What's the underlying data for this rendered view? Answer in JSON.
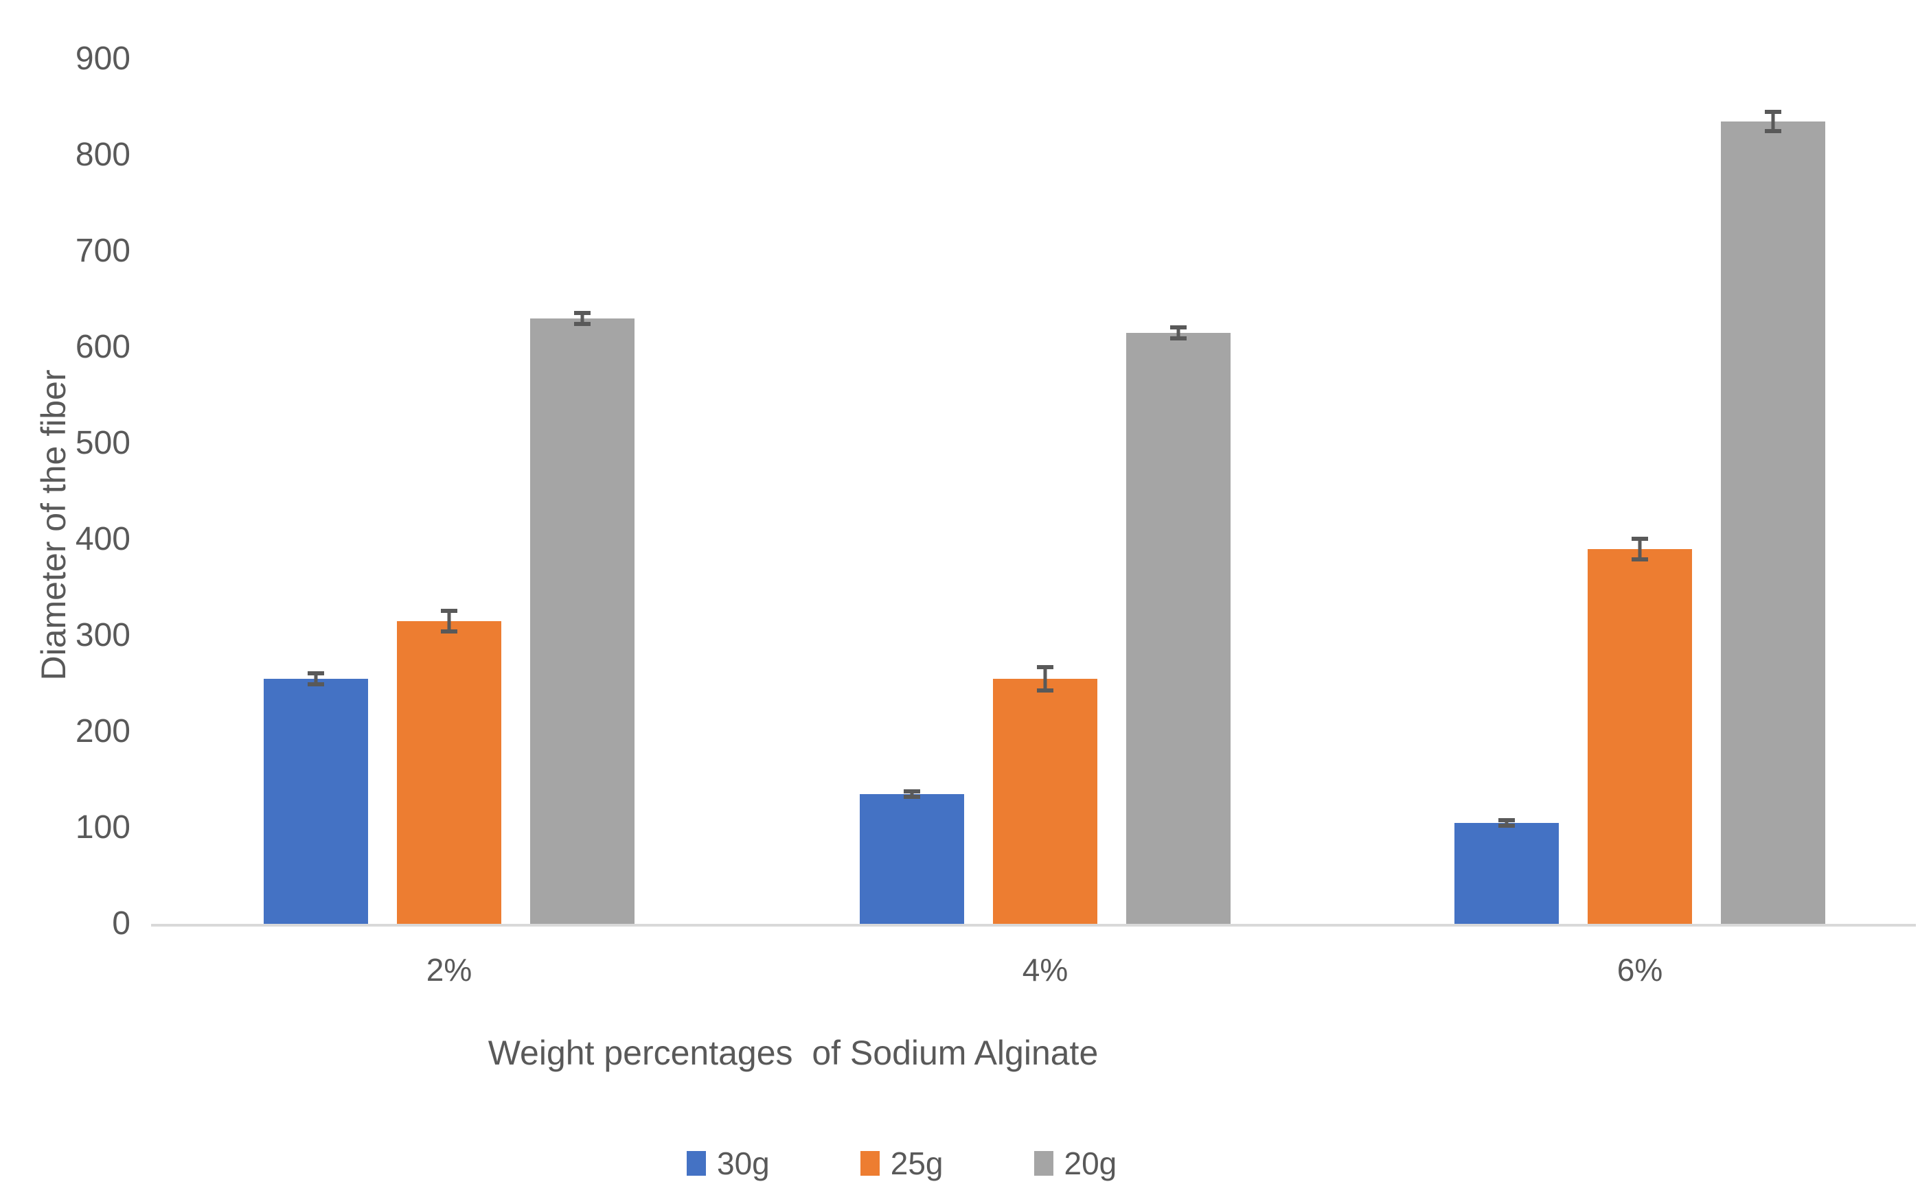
{
  "chart_data": {
    "type": "bar",
    "title": "",
    "categories": [
      "2%",
      "4%",
      "6%"
    ],
    "series": [
      {
        "name": "30g",
        "color": "#4472C4",
        "values": [
          255,
          135,
          105
        ],
        "errors": [
          8,
          5,
          5
        ]
      },
      {
        "name": "25g",
        "color": "#ED7D31",
        "values": [
          315,
          255,
          390
        ],
        "errors": [
          13,
          14,
          13
        ]
      },
      {
        "name": "20g",
        "color": "#A5A5A5",
        "values": [
          630,
          615,
          835
        ],
        "errors": [
          8,
          8,
          12
        ]
      }
    ],
    "xlabel": "Weight percentages  of Sodium Alginate",
    "ylabel": "Diameter of the fiber",
    "ylim": [
      0,
      900
    ],
    "ytick_step": 100,
    "y_tick_labels": [
      "0",
      "100",
      "200",
      "300",
      "400",
      "500",
      "600",
      "700",
      "800",
      "900"
    ],
    "grid": false,
    "legend_position": "bottom",
    "error_bar_color": "#595959",
    "axis_line_color": "#D9D9D9",
    "text_color": "#595959",
    "background_color": "#FFFFFF"
  }
}
